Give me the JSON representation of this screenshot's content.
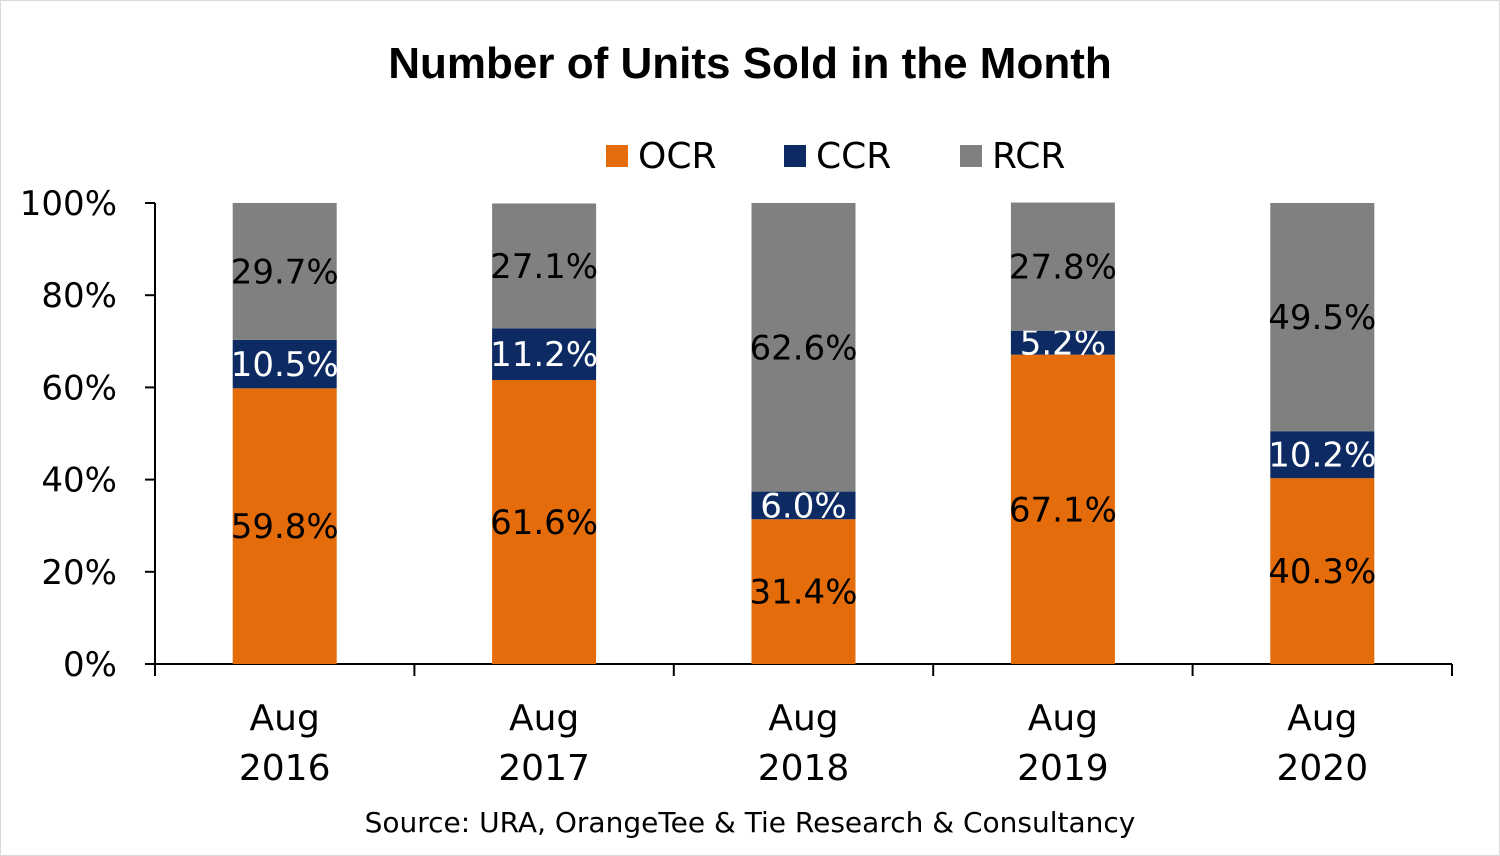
{
  "chart_data": {
    "type": "bar",
    "stacked": true,
    "title": "Number of Units Sold in the Month",
    "categories": [
      [
        "Aug",
        "2016"
      ],
      [
        "Aug",
        "2017"
      ],
      [
        "Aug",
        "2018"
      ],
      [
        "Aug",
        "2019"
      ],
      [
        "Aug",
        "2020"
      ]
    ],
    "series": [
      {
        "name": "OCR",
        "color": "#E46C0A",
        "label_color": "#000000",
        "values": [
          59.8,
          61.6,
          31.4,
          67.1,
          40.3
        ]
      },
      {
        "name": "CCR",
        "color": "#0D2A63",
        "label_color": "#FFFFFF",
        "values": [
          10.5,
          11.2,
          6.0,
          5.2,
          10.2
        ]
      },
      {
        "name": "RCR",
        "color": "#808080",
        "label_color": "#000000",
        "values": [
          29.7,
          27.1,
          62.6,
          27.8,
          49.5
        ]
      }
    ],
    "ylim": [
      0,
      100
    ],
    "yticks": [
      "0%",
      "20%",
      "40%",
      "60%",
      "80%",
      "100%"
    ],
    "legend": "top",
    "grid": false,
    "source": "Source: URA, OrangeTee & Tie Research & Consultancy"
  }
}
